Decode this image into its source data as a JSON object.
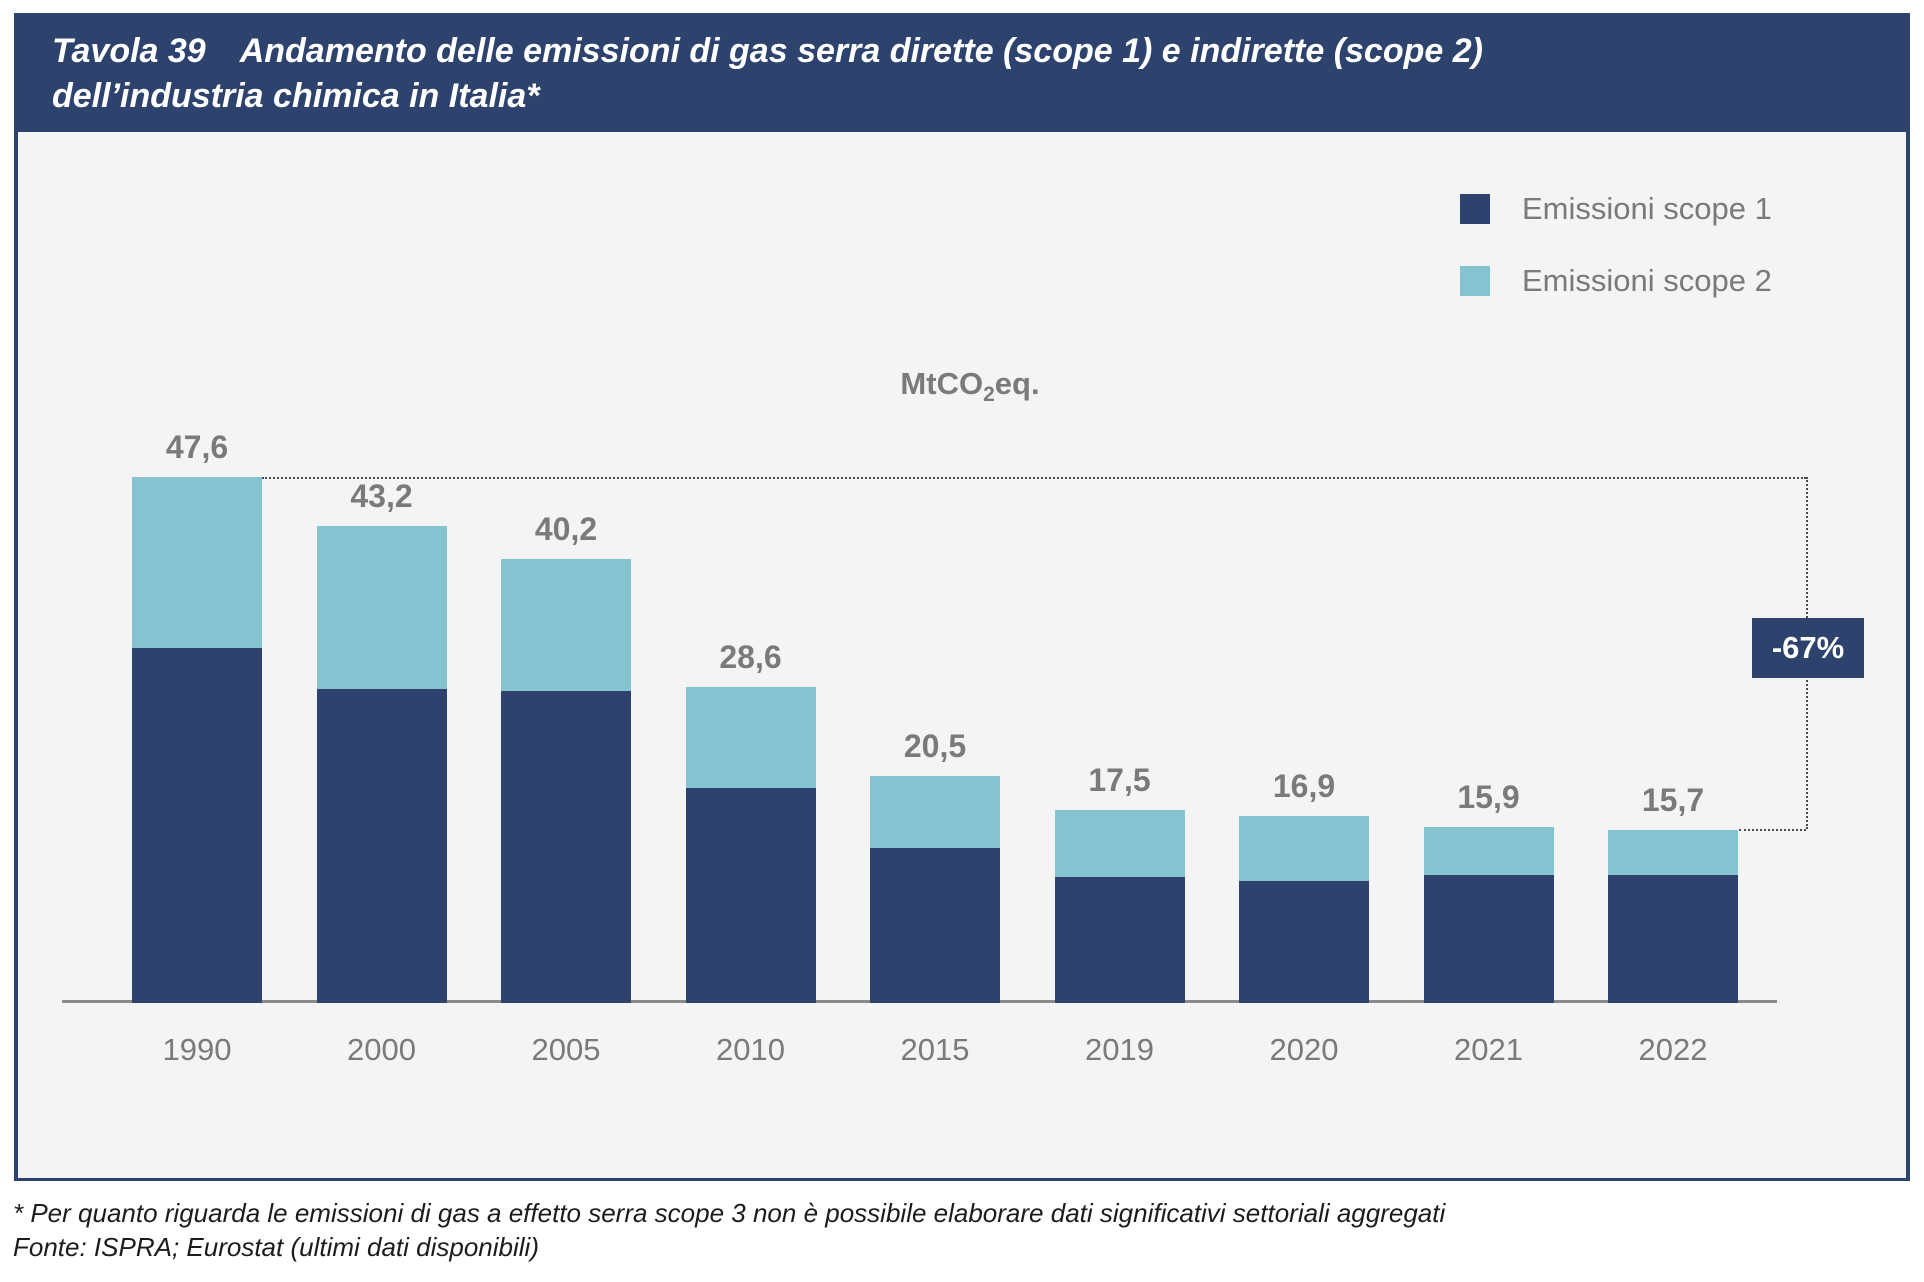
{
  "title": {
    "label": "Tavola 39",
    "line1": "Andamento delle emissioni di gas serra dirette (scope 1) e indirette (scope 2)",
    "line2": "dell’industria chimica in Italia*"
  },
  "legend": [
    {
      "label": "Emissioni scope 1",
      "color": "#2d436e"
    },
    {
      "label": "Emissioni scope 2",
      "color": "#86c3d1"
    }
  ],
  "unit": {
    "prefix": "MtCO",
    "sub": "2",
    "suffix": "eq."
  },
  "annotation": {
    "change_label": "-67%"
  },
  "footnotes": {
    "note": "* Per quanto riguarda le emissioni di gas a effetto serra scope 3 non è possibile elaborare dati significativi settoriali aggregati",
    "source": "Fonte: ISPRA; Eurostat (ultimi dati disponibili)"
  },
  "chart_data": {
    "type": "bar",
    "stacked": true,
    "title": "MtCO2eq.",
    "ylabel": "MtCO2eq.",
    "ylim": [
      0,
      50
    ],
    "grid": false,
    "legend_position": "top-right",
    "categories": [
      "1990",
      "2000",
      "2005",
      "2010",
      "2015",
      "2019",
      "2020",
      "2021",
      "2022"
    ],
    "series": [
      {
        "name": "Emissioni scope 1",
        "color": "#2d436e",
        "values": [
          32.1,
          28.4,
          28.2,
          19.5,
          14.0,
          11.4,
          11.0,
          11.6,
          11.6
        ],
        "labels": [
          "32,1",
          "28,4",
          "28,2",
          "19,5",
          "14,0",
          "11,4",
          "11,0",
          "11,6",
          "11,6"
        ]
      },
      {
        "name": "Emissioni scope 2",
        "color": "#86c3d1",
        "values": [
          15.5,
          14.8,
          12.0,
          9.1,
          6.5,
          6.1,
          5.9,
          4.3,
          4.1
        ],
        "labels": [
          "15,5",
          "14,8",
          "12,0",
          "9,1",
          "6,5",
          "6,1",
          "5,9",
          "4,3",
          "4,1"
        ]
      }
    ],
    "totals": [
      47.6,
      43.2,
      40.2,
      28.6,
      20.5,
      17.5,
      16.9,
      15.9,
      15.7
    ],
    "total_labels": [
      "47,6",
      "43,2",
      "40,2",
      "28,6",
      "20,5",
      "17,5",
      "16,9",
      "15,9",
      "15,7"
    ],
    "annotation": "-67% dal 1990 al 2022"
  }
}
